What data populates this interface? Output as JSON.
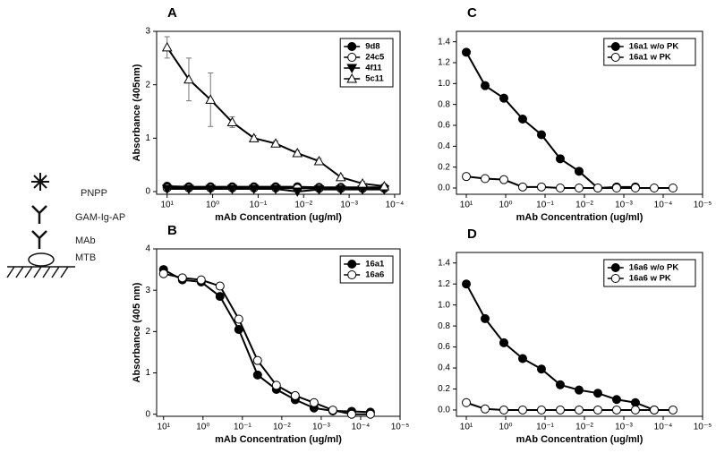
{
  "diagram": {
    "labels": [
      "PNPP",
      "GAM-Ig-AP",
      "MAb",
      "MTB"
    ]
  },
  "chart_data": [
    {
      "type": "line",
      "panel": "A",
      "xlabel": "mAb Concentration (ug/ml)",
      "ylabel": "Absorbance (405nm)",
      "xscale": "log",
      "xlim": [
        17,
        7.6e-05
      ],
      "ylim": [
        -0.05,
        3
      ],
      "xticks": [
        {
          "value": 10,
          "label": "10¹"
        },
        {
          "value": 1,
          "label": "10⁰"
        },
        {
          "value": 0.1,
          "label": "10⁻¹"
        },
        {
          "value": 0.01,
          "label": "10⁻²"
        },
        {
          "value": 0.001,
          "label": "10⁻³"
        },
        {
          "value": 0.0001,
          "label": "10⁻⁴"
        }
      ],
      "yticks": [
        0,
        1,
        2,
        3
      ],
      "legend": "upper right",
      "x": [
        10,
        3.333,
        1.111,
        0.3704,
        0.1235,
        0.04115,
        0.01372,
        0.004572,
        0.001524,
        0.000508,
        0.000169
      ],
      "series": [
        {
          "name": "9d8",
          "marker": "circle",
          "color": "#000000",
          "values": [
            0.1,
            0.09,
            0.09,
            0.09,
            0.09,
            0.09,
            0.09,
            0.08,
            0.08,
            0.08,
            0.08
          ]
        },
        {
          "name": "24c5",
          "marker": "circle",
          "color": "#ffffff",
          "values": [
            0.07,
            0.07,
            0.07,
            0.07,
            0.07,
            0.07,
            0.06,
            0.06,
            0.06,
            0.06,
            0.06
          ]
        },
        {
          "name": "4f11",
          "marker": "triangle-down",
          "color": "#000000",
          "values": [
            0.05,
            0.05,
            0.05,
            0.05,
            0.05,
            0.05,
            0.0,
            0.04,
            0.04,
            0.04,
            0.04
          ]
        },
        {
          "name": "5c11",
          "marker": "triangle-up",
          "color": "#ffffff",
          "values": [
            2.7,
            2.1,
            1.72,
            1.3,
            1.0,
            0.9,
            0.72,
            0.57,
            0.27,
            0.15,
            0.1
          ],
          "errors": [
            0.2,
            0.4,
            0.5,
            0.1,
            0.05,
            0.05,
            0.05,
            0.05,
            0.04,
            0.04,
            0.04
          ]
        }
      ]
    },
    {
      "type": "line",
      "panel": "B",
      "xlabel": "mAb Concentration (ug/ml)",
      "ylabel": "Absorbance (405 nm)",
      "xscale": "log",
      "xlim": [
        15,
        1e-05
      ],
      "ylim": [
        -0.05,
        4
      ],
      "xticks": [
        {
          "value": 10,
          "label": "10¹"
        },
        {
          "value": 1,
          "label": "10⁰"
        },
        {
          "value": 0.1,
          "label": "10⁻¹"
        },
        {
          "value": 0.01,
          "label": "10⁻²"
        },
        {
          "value": 0.001,
          "label": "10⁻³"
        },
        {
          "value": 0.0001,
          "label": "10⁻⁴"
        },
        {
          "value": 1e-05,
          "label": "10⁻⁵"
        }
      ],
      "yticks": [
        0,
        1,
        2,
        3,
        4
      ],
      "legend": "upper right",
      "x": [
        10,
        3.333,
        1.111,
        0.3704,
        0.1235,
        0.04115,
        0.01372,
        0.004572,
        0.001524,
        0.000508,
        0.000169,
        5.65e-05
      ],
      "series": [
        {
          "name": "16a1",
          "marker": "circle",
          "color": "#000000",
          "values": [
            3.5,
            3.25,
            3.2,
            2.85,
            2.05,
            0.95,
            0.6,
            0.35,
            0.15,
            0.08,
            0.07,
            0.05
          ]
        },
        {
          "name": "16a6",
          "marker": "circle",
          "color": "#ffffff",
          "values": [
            3.4,
            3.3,
            3.25,
            3.1,
            2.3,
            1.3,
            0.7,
            0.45,
            0.28,
            0.1,
            0.0,
            0.0
          ]
        }
      ]
    },
    {
      "type": "line",
      "panel": "C",
      "xlabel": "mAb Concentration (ug/ml)",
      "xscale": "log",
      "xlim": [
        17.8,
        1e-05
      ],
      "ylim": [
        -0.06,
        1.5
      ],
      "xticks": [
        {
          "value": 10,
          "label": "10¹"
        },
        {
          "value": 1,
          "label": "10⁰"
        },
        {
          "value": 0.1,
          "label": "10⁻¹"
        },
        {
          "value": 0.01,
          "label": "10⁻²"
        },
        {
          "value": 0.001,
          "label": "10⁻³"
        },
        {
          "value": 0.0001,
          "label": "10⁻⁴"
        },
        {
          "value": 1e-05,
          "label": "10⁻⁵"
        }
      ],
      "yticks": [
        {
          "value": 0,
          "label": "0.0"
        },
        0.2,
        0.4,
        0.6,
        0.8,
        {
          "value": 1,
          "label": "1.0"
        },
        1.2,
        1.4
      ],
      "legend": "upper right",
      "x": [
        10,
        3.333,
        1.111,
        0.3704,
        0.1235,
        0.04115,
        0.01372,
        0.004572,
        0.001524,
        0.000508,
        0.000169,
        5.65e-05
      ],
      "series": [
        {
          "name": "16a1 w/o PK",
          "marker": "circle",
          "color": "#000000",
          "values": [
            1.3,
            0.98,
            0.86,
            0.66,
            0.51,
            0.28,
            0.16,
            0.0,
            0.01,
            0.01,
            null,
            null
          ]
        },
        {
          "name": "16a1 w PK",
          "marker": "circle",
          "color": "#ffffff",
          "values": [
            0.11,
            0.09,
            0.08,
            0.01,
            0.01,
            0.0,
            0.0,
            0.0,
            0.0,
            0.0,
            0.0,
            0.0
          ]
        }
      ]
    },
    {
      "type": "line",
      "panel": "D",
      "xlabel": "mAb Concentration (ug/ml)",
      "xscale": "log",
      "xlim": [
        17.8,
        1e-05
      ],
      "ylim": [
        -0.06,
        1.5
      ],
      "xticks": [
        {
          "value": 10,
          "label": "10¹"
        },
        {
          "value": 1,
          "label": "10⁰"
        },
        {
          "value": 0.1,
          "label": "10⁻¹"
        },
        {
          "value": 0.01,
          "label": "10⁻²"
        },
        {
          "value": 0.001,
          "label": "10⁻³"
        },
        {
          "value": 0.0001,
          "label": "10⁻⁴"
        },
        {
          "value": 1e-05,
          "label": "10⁻⁵"
        }
      ],
      "yticks": [
        {
          "value": 0,
          "label": "0.0"
        },
        0.2,
        0.4,
        0.6,
        0.8,
        {
          "value": 1,
          "label": "1.0"
        },
        1.2,
        1.4
      ],
      "legend": "upper right",
      "x": [
        10,
        3.333,
        1.111,
        0.3704,
        0.1235,
        0.04115,
        0.01372,
        0.004572,
        0.001524,
        0.000508,
        0.000169,
        5.65e-05
      ],
      "series": [
        {
          "name": "16a6 w/o PK",
          "marker": "circle",
          "color": "#000000",
          "values": [
            1.2,
            0.87,
            0.64,
            0.49,
            0.39,
            0.24,
            0.19,
            0.16,
            0.1,
            0.07,
            0.0,
            null
          ]
        },
        {
          "name": "16a6 w PK",
          "marker": "circle",
          "color": "#ffffff",
          "values": [
            0.07,
            0.01,
            0.0,
            0.0,
            0.0,
            0.0,
            0.0,
            0.0,
            0.0,
            0.0,
            0.0,
            0.0
          ]
        }
      ]
    }
  ]
}
